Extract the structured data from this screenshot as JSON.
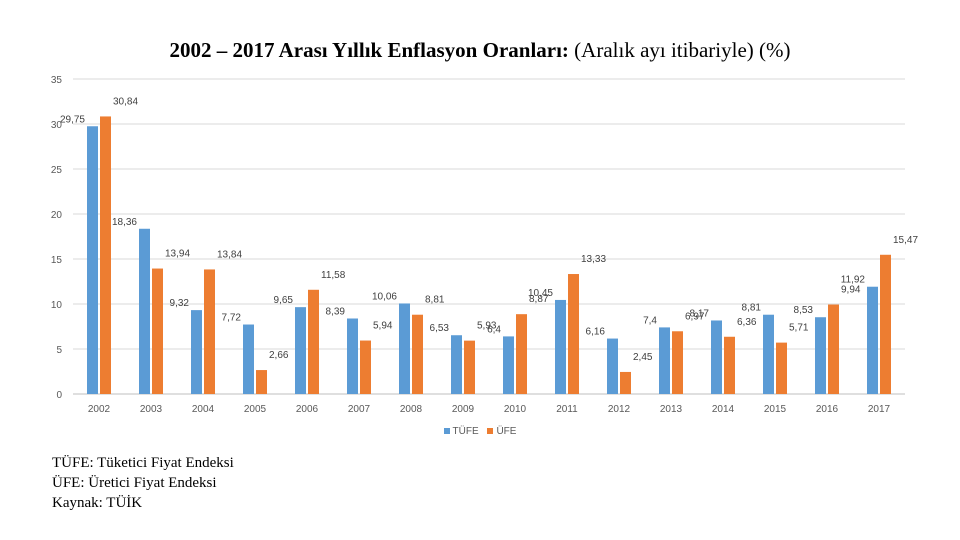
{
  "title": {
    "bold": "2002 – 2017 Arası Yıllık Enflasyon Oranları:",
    "normal": " (Aralık ayı itibariyle) (%)"
  },
  "chart_data": {
    "type": "bar",
    "categories": [
      "2002",
      "2003",
      "2004",
      "2005",
      "2006",
      "2007",
      "2008",
      "2009",
      "2010",
      "2011",
      "2012",
      "2013",
      "2014",
      "2015",
      "2016",
      "2017"
    ],
    "series": [
      {
        "name": "TÜFE",
        "color": "#5B9BD5",
        "values": [
          29.75,
          18.36,
          9.32,
          7.72,
          9.65,
          8.39,
          10.06,
          6.53,
          6.4,
          10.45,
          6.16,
          7.4,
          8.17,
          8.81,
          8.53,
          11.92
        ],
        "labels": [
          "29,75",
          "18,36",
          "9,32",
          "7,72",
          "9,65",
          "8,39",
          "10,06",
          "6,53",
          "6,4",
          "10,45",
          "6,16",
          "7,4",
          "8,17",
          "8,81",
          "8,53",
          "11,92"
        ]
      },
      {
        "name": "ÜFE",
        "color": "#ED7D31",
        "values": [
          30.84,
          13.94,
          13.84,
          2.66,
          11.58,
          5.94,
          8.81,
          5.93,
          8.87,
          13.33,
          2.45,
          6.97,
          6.36,
          5.71,
          9.94,
          15.47
        ],
        "labels": [
          "30,84",
          "13,94",
          "13,84",
          "2,66",
          "11,58",
          "5,94",
          "8,81",
          "5,93",
          "8,87",
          "13,33",
          "2,45",
          "6,97",
          "6,36",
          "5,71",
          "9,94",
          "15,47"
        ]
      }
    ],
    "ylim": [
      0,
      35
    ],
    "yticks": [
      0,
      5,
      10,
      15,
      20,
      25,
      30,
      35
    ],
    "grid": true,
    "legend_position": "bottom"
  },
  "notes": [
    "TÜFE: Tüketici Fiyat Endeksi",
    "ÜFE: Üretici Fiyat Endeksi",
    "Kaynak: TÜİK"
  ]
}
